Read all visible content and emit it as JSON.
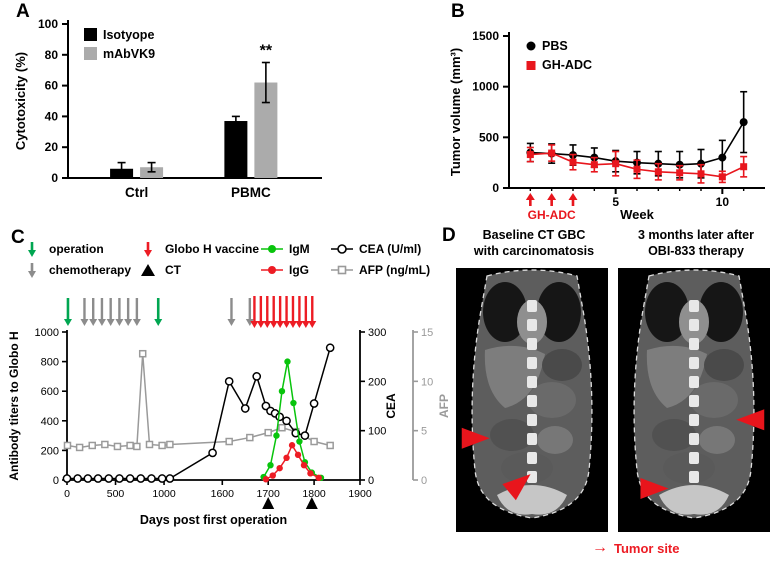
{
  "figure": {
    "panel_a": {
      "label": "A",
      "chart_data": {
        "type": "bar",
        "ylabel": "Cytotoxicity (%)",
        "ylim": [
          0,
          100
        ],
        "yticks": [
          0,
          20,
          40,
          60,
          80,
          100
        ],
        "categories": [
          "Ctrl",
          "PBMC"
        ],
        "series": [
          {
            "name": "Isotyope",
            "color": "#000000",
            "values": [
              6,
              37
            ],
            "errors": [
              4,
              3
            ]
          },
          {
            "name": "mAbVK9",
            "color": "#ababab",
            "values": [
              7,
              62
            ],
            "errors": [
              3,
              13
            ]
          }
        ],
        "significance": "**",
        "significance_at": {
          "category": "PBMC",
          "series": "mAbVK9"
        },
        "legend_position": "top-left"
      }
    },
    "panel_b": {
      "label": "B",
      "chart_data": {
        "type": "line",
        "ylabel": "Tumor volume (mm³)",
        "xlabel": "Week",
        "ylim": [
          0,
          1500
        ],
        "yticks": [
          0,
          500,
          1000,
          1500
        ],
        "xlim": [
          0,
          12
        ],
        "xticks_labeled": [
          5,
          10
        ],
        "xticks_minor": [
          1,
          2,
          3,
          4,
          6,
          7,
          8,
          9,
          11
        ],
        "series": [
          {
            "name": "PBS",
            "color": "#000000",
            "marker": "circle",
            "x": [
              1,
              2,
              3,
              4,
              5,
              6,
              7,
              8,
              9,
              10,
              11
            ],
            "y": [
              350,
              340,
              325,
              300,
              265,
              250,
              240,
              230,
              240,
              300,
              650
            ],
            "err": [
              90,
              95,
              100,
              95,
              105,
              110,
              120,
              130,
              140,
              170,
              300
            ]
          },
          {
            "name": "GH-ADC",
            "color": "#e8161d",
            "marker": "square",
            "x": [
              1,
              2,
              3,
              4,
              5,
              6,
              7,
              8,
              9,
              10,
              11
            ],
            "y": [
              330,
              345,
              255,
              230,
              240,
              185,
              160,
              150,
              140,
              110,
              210
            ],
            "err": [
              70,
              80,
              75,
              70,
              120,
              90,
              80,
              70,
              90,
              55,
              100
            ]
          }
        ],
        "treatment": {
          "label": "GH-ADC",
          "arrow_weeks": [
            1,
            2,
            3
          ],
          "color": "#e8161d"
        }
      }
    },
    "panel_c": {
      "label": "C",
      "legend_rows": [
        [
          {
            "label": "operation",
            "icon": "down-arrow",
            "color": "#00a651"
          },
          {
            "label": "Globo H vaccine",
            "icon": "down-arrow",
            "color": "#ed1c24"
          },
          {
            "label": "IgM",
            "icon": "line-dot",
            "color": "#08c40c"
          },
          {
            "label": "CEA (U/ml)",
            "icon": "line-open-circle",
            "color": "#000000"
          }
        ],
        [
          {
            "label": "chemotherapy",
            "icon": "down-arrow",
            "color": "#8c8c8c"
          },
          {
            "label": "CT",
            "icon": "triangle",
            "color": "#000000"
          },
          {
            "label": "IgG",
            "icon": "line-dot",
            "color": "#ed1c24"
          },
          {
            "label": "AFP (ng/mL)",
            "icon": "line-open-square",
            "color": "#9a9a9a"
          }
        ]
      ],
      "chart_data": {
        "type": "line",
        "xlabel": "Days post first operation",
        "ylabel_left": "Antibody titers to Globo H",
        "ylabel_cea": "CEA",
        "ylabel_afp": "AFP",
        "left_ylim": [
          0,
          1000
        ],
        "left_yticks": [
          0,
          200,
          400,
          600,
          800,
          1000
        ],
        "cea_ylim": [
          0,
          300
        ],
        "cea_yticks": [
          0,
          100,
          200,
          300
        ],
        "afp_ylim": [
          0,
          15
        ],
        "afp_yticks": [
          0,
          5,
          10,
          15
        ],
        "x_axis": {
          "segment1": [
            0,
            1600
          ],
          "segment2": [
            1600,
            1900
          ],
          "break_fraction": 0.53,
          "ticks": [
            0,
            500,
            1000,
            1600,
            1700,
            1800,
            1900
          ]
        },
        "events": {
          "operation": {
            "days": [
              10,
              940
            ],
            "color": "#00a651"
          },
          "chemotherapy": {
            "days": [
              180,
              270,
              360,
              450,
              540,
              630,
              720,
              1620,
              1660
            ],
            "color": "#8c8c8c"
          },
          "globo_h_vaccine": {
            "days": [
              1670,
              1684,
              1698,
              1712,
              1726,
              1740,
              1754,
              1768,
              1782,
              1796
            ],
            "color": "#ed1c24"
          },
          "ct": {
            "days": [
              1700,
              1795
            ],
            "color": "#000000"
          }
        },
        "series": [
          {
            "name": "AFP",
            "axis": "afp",
            "color": "#9a9a9a",
            "marker": "open-square",
            "points": [
              [
                5,
                3.5
              ],
              [
                130,
                3.3
              ],
              [
                260,
                3.5
              ],
              [
                390,
                3.6
              ],
              [
                520,
                3.4
              ],
              [
                650,
                3.5
              ],
              [
                720,
                3.4
              ],
              [
                780,
                12.8
              ],
              [
                850,
                3.6
              ],
              [
                980,
                3.5
              ],
              [
                1060,
                3.6
              ],
              [
                1615,
                3.9
              ],
              [
                1660,
                4.3
              ],
              [
                1700,
                4.8
              ],
              [
                1730,
                5.3
              ],
              [
                1760,
                4.9
              ],
              [
                1800,
                3.9
              ],
              [
                1835,
                3.5
              ]
            ]
          },
          {
            "name": "CEA",
            "axis": "cea",
            "color": "#000000",
            "marker": "open-circle",
            "points": [
              [
                0,
                3
              ],
              [
                110,
                3
              ],
              [
                215,
                3
              ],
              [
                320,
                3
              ],
              [
                430,
                3
              ],
              [
                540,
                3
              ],
              [
                650,
                3
              ],
              [
                760,
                3
              ],
              [
                870,
                3
              ],
              [
                980,
                3
              ],
              [
                1060,
                3
              ],
              [
                1500,
                55
              ],
              [
                1615,
                200
              ],
              [
                1650,
                145
              ],
              [
                1675,
                210
              ],
              [
                1695,
                150
              ],
              [
                1705,
                140
              ],
              [
                1715,
                135
              ],
              [
                1725,
                128
              ],
              [
                1740,
                120
              ],
              [
                1760,
                95
              ],
              [
                1780,
                90
              ],
              [
                1800,
                155
              ],
              [
                1835,
                268
              ]
            ]
          },
          {
            "name": "IgM",
            "axis": "left",
            "color": "#08c40c",
            "marker": "dot",
            "points": [
              [
                1690,
                20
              ],
              [
                1705,
                100
              ],
              [
                1718,
                300
              ],
              [
                1730,
                600
              ],
              [
                1742,
                800
              ],
              [
                1755,
                520
              ],
              [
                1768,
                260
              ],
              [
                1780,
                120
              ],
              [
                1795,
                50
              ],
              [
                1815,
                15
              ]
            ]
          },
          {
            "name": "IgG",
            "axis": "left",
            "color": "#ed1c24",
            "marker": "dot",
            "points": [
              [
                1695,
                5
              ],
              [
                1710,
                30
              ],
              [
                1725,
                80
              ],
              [
                1740,
                150
              ],
              [
                1752,
                235
              ],
              [
                1765,
                170
              ],
              [
                1778,
                100
              ],
              [
                1792,
                45
              ],
              [
                1810,
                15
              ]
            ]
          }
        ]
      }
    },
    "panel_d": {
      "label": "D",
      "left_title_line1": "Baseline CT GBC",
      "left_title_line2": "with carcinomatosis",
      "right_title_line1": "3 months later after",
      "right_title_line2": "OBI-833 therapy",
      "caption_arrow": "→",
      "caption_label": "Tumor site",
      "caption_color": "#ed1c24",
      "baseline_markers": [
        {
          "x": 0.13,
          "y": 0.645,
          "angle": 0
        },
        {
          "x": 0.42,
          "y": 0.815,
          "angle": -40
        }
      ],
      "followup_markers": [
        {
          "x": 0.87,
          "y": 0.575,
          "angle": 180
        },
        {
          "x": 0.24,
          "y": 0.835,
          "angle": 0
        }
      ]
    }
  }
}
